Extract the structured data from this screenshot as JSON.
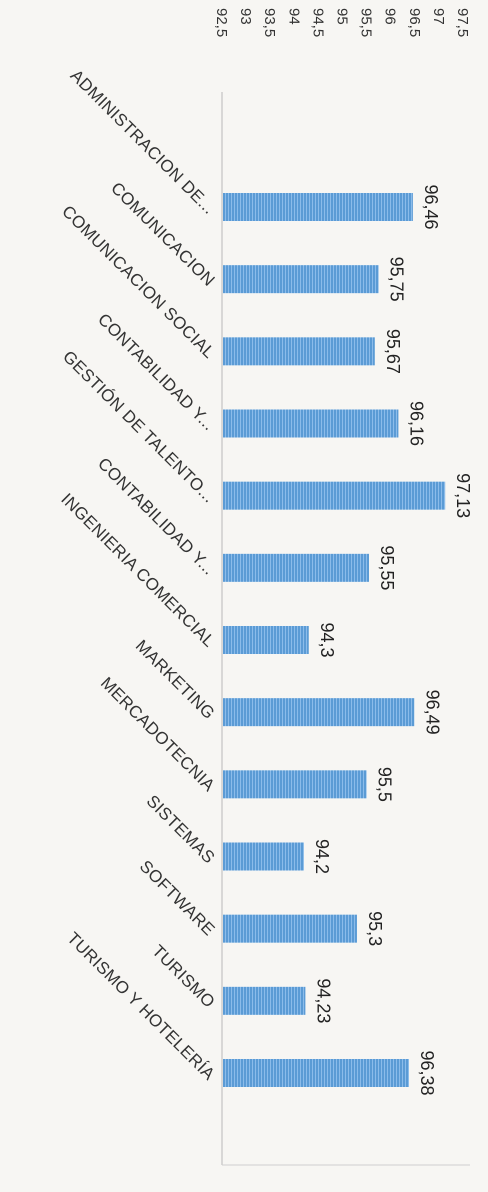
{
  "chart_data": {
    "type": "bar",
    "orientation": "horizontal",
    "categories": [
      "ADMINISTRACION DE...",
      "COMUNICACION",
      "COMUNICACION SOCIAL",
      "CONTABILIDAD Y...",
      "GESTIÓN DE TALENTO...",
      "CONTABILIDAD Y...",
      "INGENIERIA COMERCIAL",
      "MARKETING",
      "MERCADOTECNIA",
      "SISTEMAS",
      "SOFTWARE",
      "TURISMO",
      "TURISMO Y HOTELERÍA"
    ],
    "values": [
      96.46,
      95.75,
      95.67,
      96.16,
      97.13,
      95.55,
      94.3,
      96.49,
      95.5,
      94.2,
      95.3,
      94.23,
      96.38
    ],
    "value_labels": [
      "96,46",
      "95,75",
      "95,67",
      "96,16",
      "97,13",
      "95,55",
      "94,3",
      "96,49",
      "95,5",
      "94,2",
      "95,3",
      "94,23",
      "96,38"
    ],
    "ticks": [
      92.5,
      93,
      93.5,
      94,
      94.5,
      95,
      95.5,
      96,
      96.5,
      97,
      97.5
    ],
    "tick_labels": [
      "92,5",
      "93",
      "93,5",
      "94",
      "94,5",
      "95",
      "95,5",
      "96",
      "96,5",
      "97",
      "97,5"
    ],
    "xlim": [
      92.5,
      97.5
    ],
    "title": "",
    "xlabel": "",
    "ylabel": "",
    "grid": false,
    "legend": "none",
    "bar_color": "#5b9bd5"
  }
}
